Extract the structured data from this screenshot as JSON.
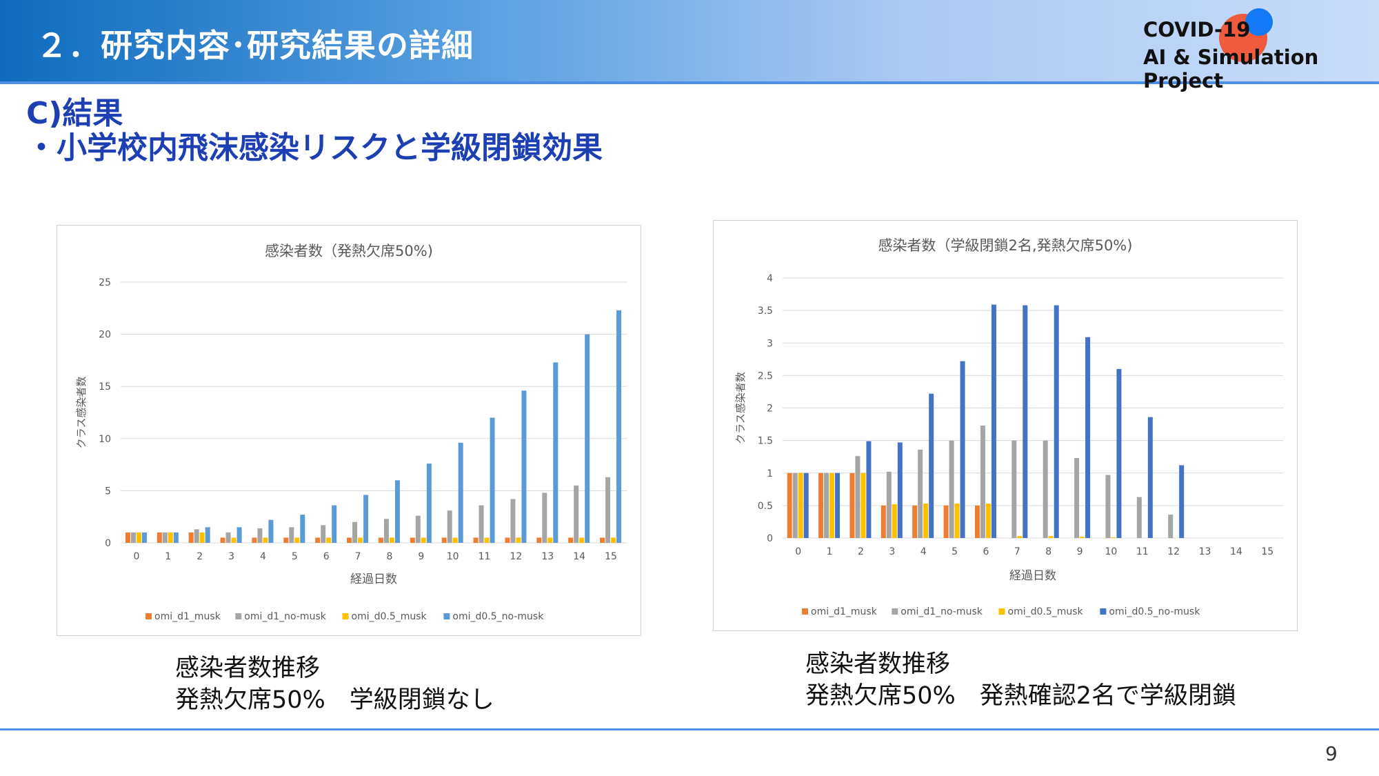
{
  "header": {
    "title": "２．研究内容･研究結果の詳細",
    "project_line1": "COVID-19",
    "project_line2": "AI & Simulation Project"
  },
  "section": {
    "title": "C)結果",
    "subtitle": "・小学校内飛沫感染リスクと学級閉鎖効果"
  },
  "colors": {
    "header_start": "#0f6bbf",
    "header_end": "#c9dcfa",
    "title_blue": "#1c3fb3",
    "series_orange": "#ED7D31",
    "series_gray": "#A5A5A5",
    "series_yellow": "#FFC000",
    "series_light_blue": "#5B9BD5",
    "series_dark_blue": "#4472C4"
  },
  "chart_data": [
    {
      "type": "bar",
      "title": "感染者数（発熱欠席50%)",
      "xlabel": "経過日数",
      "ylabel": "クラス感染者数",
      "ylim": [
        0,
        25
      ],
      "yticks": [
        "0",
        "5",
        "10",
        "15",
        "20",
        "25"
      ],
      "grid": true,
      "legend": "bottom",
      "categories": [
        "0",
        "1",
        "2",
        "3",
        "4",
        "5",
        "6",
        "7",
        "8",
        "9",
        "10",
        "11",
        "12",
        "13",
        "14",
        "15"
      ],
      "series": [
        {
          "name": "omi_d1_musk",
          "color": "#ED7D31",
          "values": [
            1,
            1,
            1,
            0.5,
            0.5,
            0.5,
            0.5,
            0.5,
            0.5,
            0.5,
            0.5,
            0.5,
            0.5,
            0.5,
            0.5,
            0.5
          ]
        },
        {
          "name": "omi_d1_no-musk",
          "color": "#A5A5A5",
          "values": [
            1,
            1,
            1.3,
            1,
            1.4,
            1.5,
            1.7,
            2,
            2.3,
            2.6,
            3.1,
            3.6,
            4.2,
            4.8,
            5.5,
            6.3
          ]
        },
        {
          "name": "omi_d0.5_musk",
          "color": "#FFC000",
          "values": [
            1,
            1,
            1,
            0.5,
            0.5,
            0.5,
            0.5,
            0.5,
            0.5,
            0.5,
            0.5,
            0.5,
            0.5,
            0.5,
            0.5,
            0.5
          ]
        },
        {
          "name": "omi_d0.5_no-musk",
          "color": "#5B9BD5",
          "values": [
            1,
            1,
            1.5,
            1.5,
            2.2,
            2.7,
            3.6,
            4.6,
            6,
            7.6,
            9.6,
            12,
            14.6,
            17.3,
            20,
            22.3
          ]
        }
      ]
    },
    {
      "type": "bar",
      "title": "感染者数（学級閉鎖2名,発熱欠席50%)",
      "xlabel": "経過日数",
      "ylabel": "クラス感染者数",
      "ylim": [
        0,
        4
      ],
      "yticks": [
        "0",
        "0.5",
        "1",
        "1.5",
        "2",
        "2.5",
        "3",
        "3.5",
        "4"
      ],
      "grid": true,
      "legend": "bottom",
      "categories": [
        "0",
        "1",
        "2",
        "3",
        "4",
        "5",
        "6",
        "7",
        "8",
        "9",
        "10",
        "11",
        "12",
        "13",
        "14",
        "15"
      ],
      "series": [
        {
          "name": "omi_d1_musk",
          "color": "#ED7D31",
          "values": [
            1,
            1,
            1,
            0.5,
            0.5,
            0.5,
            0.5,
            0,
            0,
            0,
            0,
            0,
            0,
            0,
            0,
            0
          ]
        },
        {
          "name": "omi_d1_no-musk",
          "color": "#A5A5A5",
          "values": [
            1,
            1,
            1.26,
            1.02,
            1.36,
            1.5,
            1.73,
            1.5,
            1.5,
            1.23,
            0.97,
            0.63,
            0.36,
            0,
            0,
            0
          ]
        },
        {
          "name": "omi_d0.5_musk",
          "color": "#FFC000",
          "values": [
            1,
            1,
            1,
            0.52,
            0.53,
            0.53,
            0.53,
            0.03,
            0.03,
            0.02,
            0.01,
            0,
            0,
            0,
            0,
            0
          ]
        },
        {
          "name": "omi_d0.5_no-musk",
          "color": "#4472C4",
          "values": [
            1,
            1,
            1.49,
            1.47,
            2.22,
            2.72,
            3.59,
            3.58,
            3.58,
            3.09,
            2.6,
            1.86,
            1.12,
            0,
            0,
            0
          ]
        }
      ]
    }
  ],
  "captions": {
    "left_line1": "感染者数推移",
    "left_line2": "発熱欠席50%　学級閉鎖なし",
    "right_line1": "感染者数推移",
    "right_line2": "発熱欠席50%　発熱確認2名で学級閉鎖"
  },
  "page_number": "9"
}
